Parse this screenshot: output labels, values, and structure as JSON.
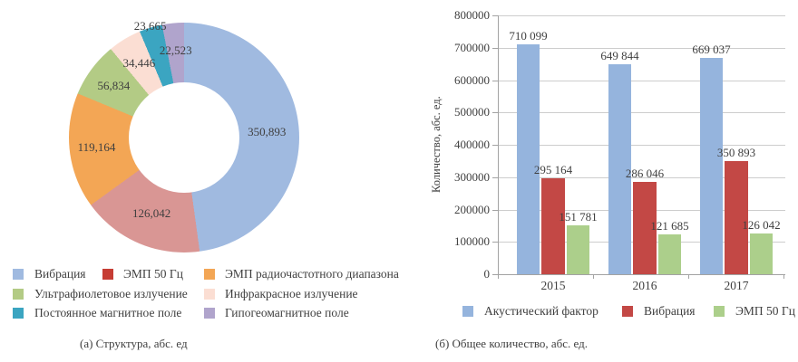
{
  "page": {
    "background": "#FFFFFF",
    "text_color": "#3F3F3F"
  },
  "chart_data": [
    {
      "type": "pie",
      "subtype": "donut",
      "caption": "(а) Структура, абс. ед",
      "legend_position": "bottom",
      "slices": [
        {
          "label": "Вибрация",
          "value": 350893,
          "value_label": "350,893",
          "color": "#A0BAE0"
        },
        {
          "label": "ЭМП 50 Гц",
          "value": 126042,
          "value_label": "126,042",
          "color": "#D99694",
          "legend_color": "#C63D34"
        },
        {
          "label": "ЭМП радиочастотного диапазона",
          "value": 119164,
          "value_label": "119,164",
          "color": "#F3A655"
        },
        {
          "label": "Ультрафиолетовое излучение",
          "value": 56834,
          "value_label": "56,834",
          "color": "#B3CB85"
        },
        {
          "label": "Инфракрасное излучение",
          "value": 34446,
          "value_label": "34,446",
          "color": "#FBDED3"
        },
        {
          "label": "Постоянное магнитное поле",
          "value": 23665,
          "value_label": "23,665",
          "color": "#3BA5C1"
        },
        {
          "label": "Гипогеомагнитное поле",
          "value": 22523,
          "value_label": "22,523",
          "color": "#B0A4CC"
        }
      ],
      "layout_hints": {
        "start_angle_deg": 0,
        "label_radius_ratio": [
          0.72,
          0.72,
          0.765,
          0.76,
          0.757,
          1.016,
          0.756
        ]
      }
    },
    {
      "type": "bar",
      "caption": "(б) Общее количество, абс. ед.",
      "ylabel": "Количество, абс. ед.",
      "ylim": [
        0,
        800000
      ],
      "ytick_labels": [
        "800000",
        "700000",
        "600000",
        "500000",
        "400000",
        "300000",
        "200000",
        "100000",
        "0"
      ],
      "yticks": [
        800000,
        700000,
        600000,
        500000,
        400000,
        300000,
        200000,
        100000,
        0
      ],
      "categories": [
        "2015",
        "2016",
        "2017"
      ],
      "series": [
        {
          "name": "Акустический фактор",
          "color": "#95B4DD",
          "values": [
            710099,
            649844,
            669037
          ],
          "value_labels": [
            "710 099",
            "649 844",
            "669 037"
          ]
        },
        {
          "name": "Вибрация",
          "color": "#C34845",
          "values": [
            295164,
            286046,
            350893
          ],
          "value_labels": [
            "295 164",
            "286 046",
            "350 893"
          ]
        },
        {
          "name": "ЭМП 50 Гц",
          "color": "#ACCF8B",
          "values": [
            151781,
            121685,
            126042
          ],
          "value_labels": [
            "151 781",
            "121 685",
            "126 042"
          ]
        }
      ],
      "grid": true,
      "legend_position": "bottom"
    }
  ]
}
